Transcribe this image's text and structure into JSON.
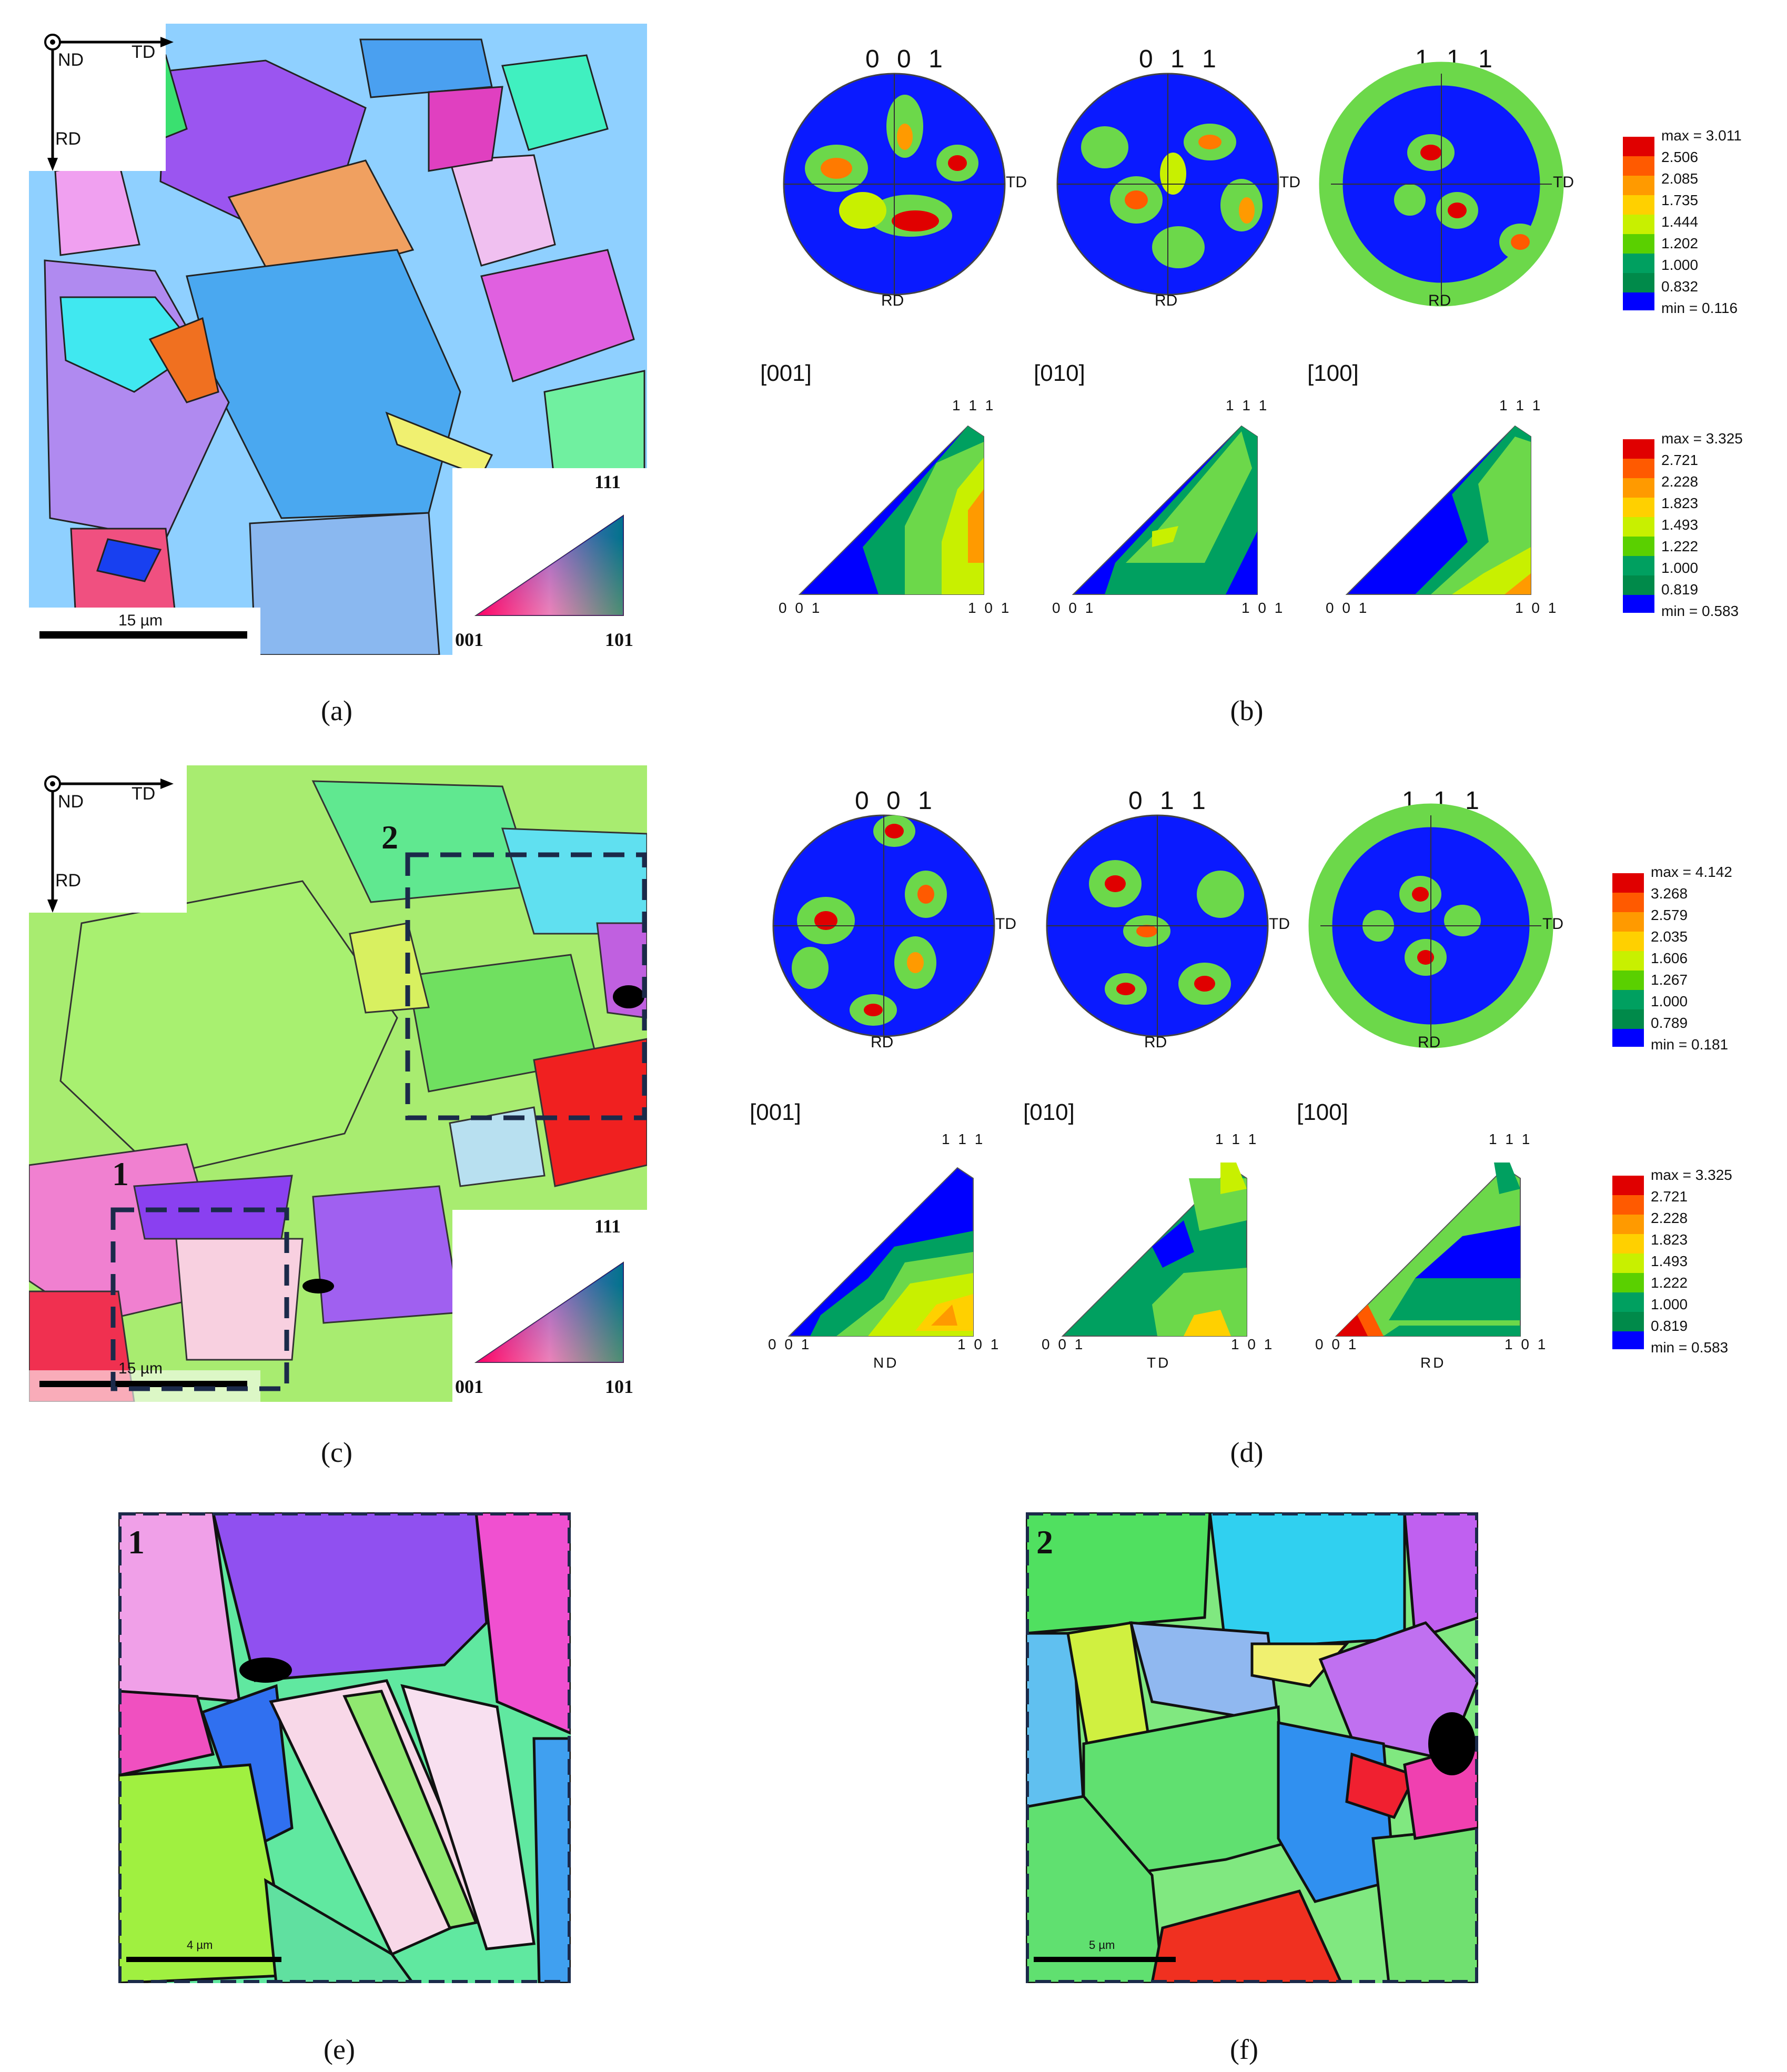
{
  "panels": {
    "a": {
      "caption": "(a)",
      "scale_label": "15 µm",
      "axis_nd": "ND",
      "axis_td": "TD",
      "axis_rd": "RD",
      "key": {
        "c001": "001",
        "c101": "101",
        "c111": "111"
      }
    },
    "b": {
      "caption": "(b)",
      "pole_titles": [
        "0 0 1",
        "0 1 1",
        "1 1 1"
      ],
      "pole_td": "TD",
      "pole_rd": "RD",
      "pf_legend": [
        "max = 3.011",
        "2.506",
        "2.085",
        "1.735",
        "1.444",
        "1.202",
        "1.000",
        "0.832",
        "min = 0.116"
      ],
      "ipf_dirs": [
        "[001]",
        "[010]",
        "[100]"
      ],
      "ipf_corners": {
        "c001": "0 0 1",
        "c101": "1 0 1",
        "c111": "1 1 1"
      },
      "ipf_legend": [
        "max = 3.325",
        "2.721",
        "2.228",
        "1.823",
        "1.493",
        "1.222",
        "1.000",
        "0.819",
        "min = 0.583"
      ]
    },
    "c": {
      "caption": "(c)",
      "scale_label": "15 µm",
      "axis_nd": "ND",
      "axis_td": "TD",
      "axis_rd": "RD",
      "region1": "1",
      "region2": "2",
      "key": {
        "c001": "001",
        "c101": "101",
        "c111": "111"
      }
    },
    "d": {
      "caption": "(d)",
      "pole_titles": [
        "0 0 1",
        "0 1 1",
        "1 1 1"
      ],
      "pole_td": "TD",
      "pole_rd": "RD",
      "pf_legend": [
        "max = 4.142",
        "3.268",
        "2.579",
        "2.035",
        "1.606",
        "1.267",
        "1.000",
        "0.789",
        "min = 0.181"
      ],
      "ipf_dirs": [
        "[001]",
        "[010]",
        "[100]"
      ],
      "ipf_axes": [
        "ND",
        "TD",
        "RD"
      ],
      "ipf_corners": {
        "c001": "0 0 1",
        "c101": "1 0 1",
        "c111": "1 1 1"
      },
      "ipf_legend": [
        "max = 3.325",
        "2.721",
        "2.228",
        "1.823",
        "1.493",
        "1.222",
        "1.000",
        "0.819",
        "min = 0.583"
      ]
    },
    "e": {
      "caption": "(e)",
      "label": "1",
      "scale_label": "4 µm"
    },
    "f": {
      "caption": "(f)",
      "label": "2",
      "scale_label": "5 µm"
    }
  },
  "colors": {
    "legend": [
      "#e00000",
      "#ff5a00",
      "#ff9a00",
      "#ffd000",
      "#c8f000",
      "#5ad000",
      "#00a060",
      "#008a4a",
      "#0000ff"
    ],
    "pf_bg": "#0a1aff",
    "frame": "#1b2a4a"
  }
}
